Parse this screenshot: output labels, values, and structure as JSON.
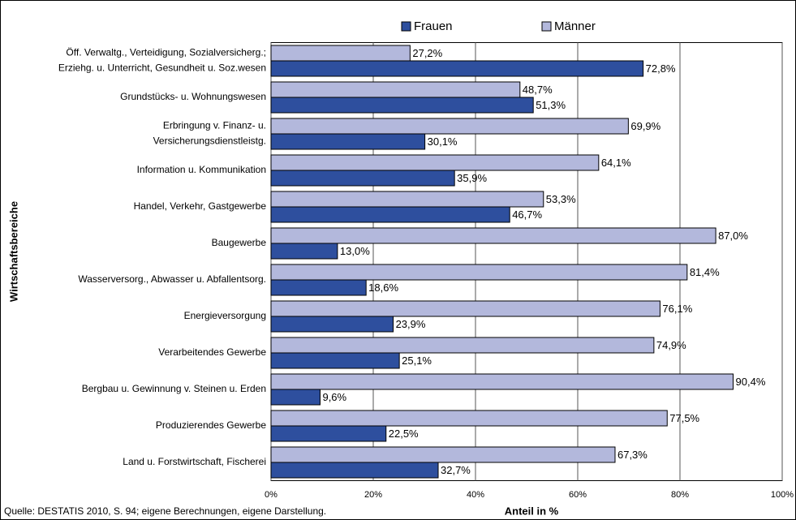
{
  "chart_data": {
    "type": "hbar",
    "y_axis_label": "Wirtschaftsbereiche",
    "x_axis_label": "Anteil in %",
    "source": "Quelle: DESTATIS 2010, S. 94; eigene Berechnungen, eigene Darstellung.",
    "categories": [
      "Öff. Verwaltg., Verteidigung, Sozialversicherg.;\nErziehg. u. Unterricht, Gesundheit u. Soz.wesen",
      "Grundstücks- u. Wohnungswesen",
      "Erbringung v. Finanz- u.\nVersicherungsdienstleistg.",
      "Information u. Kommunikation",
      "Handel, Verkehr, Gastgewerbe",
      "Baugewerbe",
      "Wasserversorg., Abwasser u. Abfallentsorg.",
      "Energieversorgung",
      "Verarbeitendes Gewerbe",
      "Bergbau u. Gewinnung v. Steinen u. Erden",
      "Produzierendes Gewerbe",
      "Land u. Forstwirtschaft, Fischerei"
    ],
    "series": [
      {
        "name": "Frauen",
        "color": "#2e4f9e",
        "values": [
          72.8,
          51.3,
          30.1,
          35.9,
          46.7,
          13.0,
          18.6,
          23.9,
          25.1,
          9.6,
          22.5,
          32.7
        ],
        "value_labels": [
          "72,8%",
          "51,3%",
          "30,1%",
          "35,9%",
          "46,7%",
          "13,0%",
          "18,6%",
          "23,9%",
          "25,1%",
          "9,6%",
          "22,5%",
          "32,7%"
        ]
      },
      {
        "name": "Männer",
        "color": "#b3b8dc",
        "values": [
          27.2,
          48.7,
          69.9,
          64.1,
          53.3,
          87.0,
          81.4,
          76.1,
          74.9,
          90.4,
          77.5,
          67.3
        ],
        "value_labels": [
          "27,2%",
          "48,7%",
          "69,9%",
          "64,1%",
          "53,3%",
          "87,0%",
          "81,4%",
          "76,1%",
          "74,9%",
          "90,4%",
          "77,5%",
          "67,3%"
        ]
      }
    ],
    "xlim": [
      0,
      100
    ],
    "xticks": [
      {
        "value": 0,
        "label": "0%"
      },
      {
        "value": 20,
        "label": "20%"
      },
      {
        "value": 40,
        "label": "40%"
      },
      {
        "value": 60,
        "label": "60%"
      },
      {
        "value": 80,
        "label": "80%"
      },
      {
        "value": 100,
        "label": "100%"
      }
    ],
    "grid": true,
    "legend": "top"
  }
}
